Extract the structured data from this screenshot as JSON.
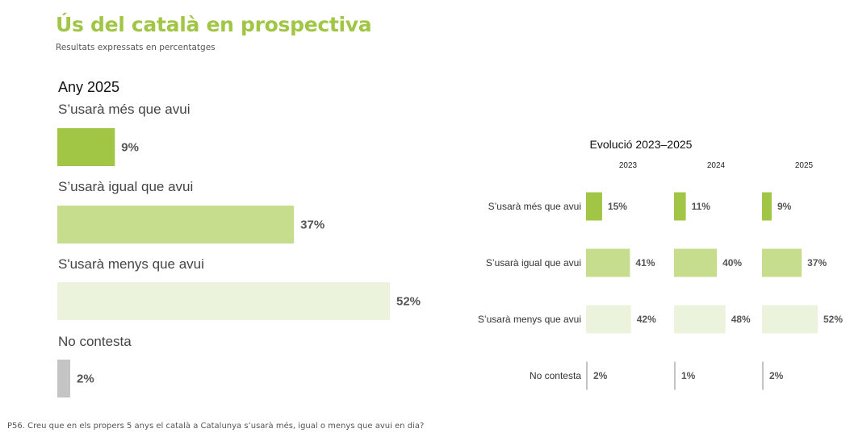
{
  "header": {
    "title": "Ús del català en prospectiva",
    "subtitle": "Resultats expressats en percentatges"
  },
  "footnote": "P56. Creu que en els propers 5 anys el català a Catalunya s’usarà més, igual o menys que avui en dia?",
  "colors": {
    "mes": "#a1c646",
    "igual": "#c6dd8e",
    "menys": "#ecf3dc",
    "nc": "#c4c4c4"
  },
  "chart_data": [
    {
      "type": "bar",
      "orientation": "horizontal",
      "title": "Any 2025",
      "categories": [
        "S’usarà més que avui",
        "S’usarà igual que avui",
        "S'usarà menys que avui",
        "No contesta"
      ],
      "values": [
        9,
        37,
        52,
        2
      ],
      "value_labels": [
        "9%",
        "37%",
        "52%",
        "2%"
      ],
      "xlim": [
        0,
        60
      ]
    },
    {
      "type": "bar",
      "orientation": "horizontal",
      "title": "Evolució 2023–2025",
      "categories": [
        "S’usarà més que avui",
        "S’usarà igual que avui",
        "S’usarà menys que avui",
        "No contesta"
      ],
      "series": [
        {
          "name": "2023",
          "values": [
            15,
            41,
            42,
            2
          ],
          "labels": [
            "15%",
            "41%",
            "42%",
            "2%"
          ]
        },
        {
          "name": "2024",
          "values": [
            11,
            40,
            48,
            1
          ],
          "labels": [
            "11%",
            "40%",
            "48%",
            "1%"
          ]
        },
        {
          "name": "2025",
          "values": [
            9,
            37,
            52,
            2
          ],
          "labels": [
            "9%",
            "37%",
            "52%",
            "2%"
          ]
        }
      ],
      "xlim": [
        0,
        60
      ]
    }
  ]
}
